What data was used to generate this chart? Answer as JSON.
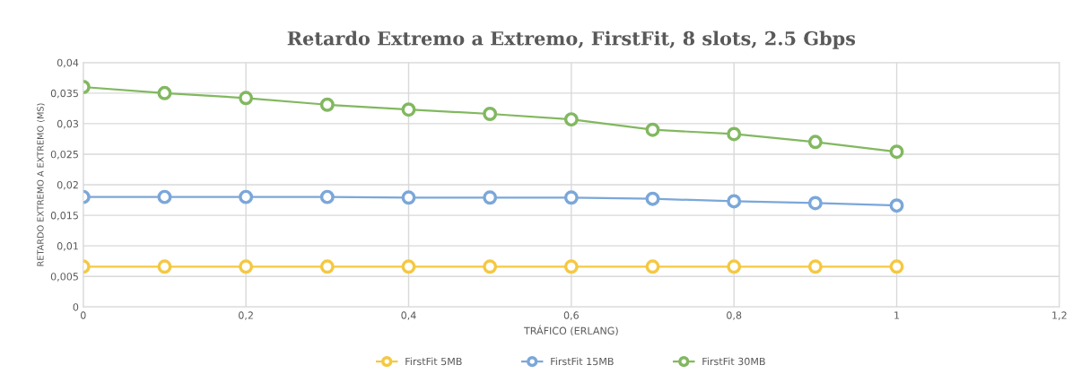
{
  "chart_data": {
    "type": "line",
    "title": "Retardo Extremo a Extremo, FirstFit, 8 slots, 2.5 Gbps",
    "xlabel": "TRÁFICO (ERLANG)",
    "ylabel": "RETARDO EXTREMO A EXTREMO (MS)",
    "x": [
      0,
      0.1,
      0.2,
      0.3,
      0.4,
      0.5,
      0.6,
      0.7,
      0.8,
      0.9,
      1
    ],
    "series": [
      {
        "name": "FirstFit 5MB",
        "color": "#f5c842",
        "values": [
          0.0066,
          0.0066,
          0.0066,
          0.0066,
          0.0066,
          0.0066,
          0.0066,
          0.0066,
          0.0066,
          0.0066,
          0.0066
        ]
      },
      {
        "name": "FirstFit 15MB",
        "color": "#7ba7d9",
        "values": [
          0.018,
          0.018,
          0.018,
          0.018,
          0.0179,
          0.0179,
          0.0179,
          0.0177,
          0.0173,
          0.017,
          0.0166
        ]
      },
      {
        "name": "FirstFit 30MB",
        "color": "#82b860",
        "values": [
          0.036,
          0.035,
          0.0342,
          0.0331,
          0.0323,
          0.0316,
          0.0307,
          0.029,
          0.0283,
          0.027,
          0.0254
        ]
      }
    ],
    "xlim": [
      0,
      1.2
    ],
    "xticks": [
      0,
      {
        "value": 0.2,
        "label": "0,2"
      },
      {
        "value": 0.4,
        "label": "0,4"
      },
      {
        "value": 0.6,
        "label": "0,6"
      },
      {
        "value": 0.8,
        "label": "0,8"
      },
      1,
      {
        "value": 1.2,
        "label": "1,2"
      }
    ],
    "ylim": [
      0,
      0.04
    ],
    "yticks": [
      0,
      {
        "value": 0.005,
        "label": "0,005"
      },
      {
        "value": 0.01,
        "label": "0,01"
      },
      {
        "value": 0.015,
        "label": "0,015"
      },
      {
        "value": 0.02,
        "label": "0,02"
      },
      {
        "value": 0.025,
        "label": "0,025"
      },
      {
        "value": 0.03,
        "label": "0,03"
      },
      {
        "value": 0.035,
        "label": "0,035"
      },
      {
        "value": 0.04,
        "label": "0,04"
      }
    ],
    "grid": true,
    "legend": "bottom",
    "marker": "circle",
    "line_style": "solid"
  }
}
